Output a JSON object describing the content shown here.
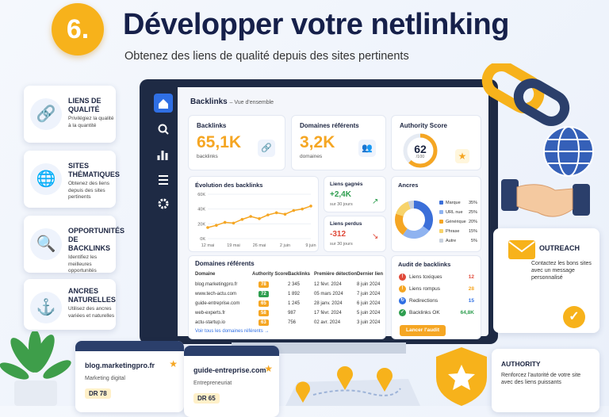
{
  "header": {
    "number": "6.",
    "title": "Développer votre netlinking",
    "subtitle": "Obtenez des liens de qualité depuis des sites pertinents"
  },
  "features": [
    {
      "title": "LIENS DE QUALITÉ",
      "text": "Privilégiez la qualité à la quantité"
    },
    {
      "title": "SITES THÉMATIQUES",
      "text": "Obtenez des liens depuis des sites pertinents"
    },
    {
      "title": "OPPORTUNITÉS DE BACKLINKS",
      "text": "Identifiez les meilleures opportunités"
    },
    {
      "title": "ANCRES NATURELLES",
      "text": "Utilisez des ancres variées et naturelles"
    }
  ],
  "dashboard": {
    "title": "Backlinks",
    "breadcrumb": "– Vue d'ensemble",
    "kpis": [
      {
        "label": "Backlinks",
        "value": "65,1K",
        "unit": "backlinks"
      },
      {
        "label": "Domaines référents",
        "value": "3,2K",
        "unit": "domaines"
      }
    ],
    "authority": {
      "label": "Authority Score",
      "value": 62,
      "max": {
        "value": 100,
        "label": "/100"
      }
    },
    "evolution": {
      "type": "line",
      "title": "Évolution des backlinks",
      "categories": [
        "12 mai",
        null,
        null,
        "19 mai",
        null,
        null,
        "26 mai",
        null,
        null,
        "2 juin",
        null,
        null,
        "9 juin"
      ],
      "values": [
        15,
        18,
        22,
        21,
        26,
        30,
        27,
        32,
        35,
        33,
        38,
        40,
        44
      ],
      "color": "#f5a623",
      "ylim": [
        0,
        60
      ],
      "yticks": [
        {
          "value": 0,
          "label": "0K"
        },
        {
          "value": 20,
          "label": "20K"
        },
        {
          "value": 40,
          "label": "40K"
        },
        {
          "value": 60,
          "label": "60K"
        }
      ],
      "grid": true
    },
    "gained": {
      "label": "Liens gagnés",
      "value": "+2,4K",
      "period": "sur 30 jours"
    },
    "lost": {
      "label": "Liens perdus",
      "value": "-312",
      "period": "sur 30 jours"
    },
    "anchors": {
      "type": "pie",
      "title": "Ancres",
      "categories": [
        "Marque",
        "URL nue",
        "Générique",
        "Phrase",
        "Autre"
      ],
      "values": [
        35,
        25,
        20,
        15,
        5
      ],
      "value_labels": [
        "35%",
        "25%",
        "20%",
        "15%",
        "5%"
      ],
      "colors": [
        "#3b6fd9",
        "#8fb3f0",
        "#f5a623",
        "#f7d36b",
        "#c8d0dc"
      ]
    },
    "domains": {
      "title": "Domaines référents",
      "columns": [
        "Domaine",
        "Authority Score",
        "Backlinks",
        "Première détection",
        "Dernier lien"
      ],
      "rows": [
        [
          "blog.marketingpro.fr",
          "78",
          "2 345",
          "12 févr. 2024",
          "8 juin 2024"
        ],
        [
          "www.tech-actu.com",
          "72",
          "1 892",
          "05 mars 2024",
          "7 juin 2024"
        ],
        [
          "guide-entreprise.com",
          "65",
          "1 245",
          "28 janv. 2024",
          "6 juin 2024"
        ],
        [
          "web-experts.fr",
          "58",
          "987",
          "17 févr. 2024",
          "5 juin 2024"
        ],
        [
          "actu-startup.io",
          "63",
          "756",
          "02 avr. 2024",
          "3 juin 2024"
        ]
      ],
      "link": "Voir tous les domaines référents →"
    },
    "audit": {
      "title": "Audit de backlinks",
      "items": [
        {
          "label": "Liens toxiques",
          "value": "12"
        },
        {
          "label": "Liens rompus",
          "value": "28"
        },
        {
          "label": "Redirections",
          "value": "15"
        },
        {
          "label": "Backlinks OK",
          "value": "64,8K"
        }
      ],
      "button": "Lancer l'audit"
    }
  },
  "outreach": {
    "title": "OUTREACH",
    "text": "Contactez les bons sites avec un message personnalisé"
  },
  "authority_card": {
    "title": "AUTHORITY",
    "text": "Renforcez l'autorité de votre site avec des liens puissants"
  },
  "sites": [
    {
      "domain": "blog.marketingpro.fr",
      "category": "Marketing digital",
      "dr": "DR 78"
    },
    {
      "domain": "guide-entreprise.com",
      "category": "Entrepreneuriat",
      "dr": "DR 65"
    }
  ]
}
